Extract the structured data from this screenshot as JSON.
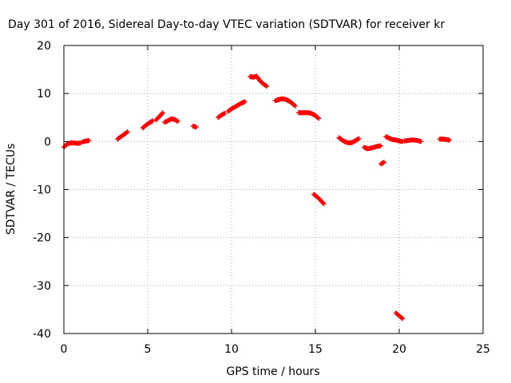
{
  "chart_data": {
    "type": "scatter",
    "title": "Day 301 of 2016, Sidereal Day-to-day VTEC variation (SDTVAR) for receiver kr",
    "xlabel": "GPS time / hours",
    "ylabel": "SDTVAR / TECUs",
    "xlim": [
      0,
      25
    ],
    "ylim": [
      -40,
      20
    ],
    "xticks": [
      0,
      5,
      10,
      15,
      20,
      25
    ],
    "yticks": [
      -40,
      -30,
      -20,
      -10,
      0,
      10,
      20
    ],
    "grid": true,
    "point_color": "#ff0000",
    "series": [
      {
        "segments": [
          {
            "x": [
              0.0,
              0.2,
              0.4,
              0.6,
              0.8,
              1.0
            ],
            "y": [
              -1.2,
              -0.5,
              -0.3,
              -0.3,
              -0.4,
              -0.3
            ]
          },
          {
            "x": [
              1.1,
              1.3,
              1.5
            ],
            "y": [
              -0.1,
              0.1,
              0.2
            ]
          },
          {
            "x": [
              3.2,
              3.4,
              3.6,
              3.8
            ],
            "y": [
              0.5,
              1.0,
              1.5,
              2.0
            ]
          },
          {
            "x": [
              4.7,
              4.9,
              5.1,
              5.3
            ],
            "y": [
              2.8,
              3.4,
              3.9,
              4.3
            ]
          },
          {
            "x": [
              5.5,
              5.7,
              5.9
            ],
            "y": [
              4.5,
              5.2,
              6.0
            ]
          },
          {
            "x": [
              6.0,
              6.2,
              6.4,
              6.6,
              6.8
            ],
            "y": [
              4.0,
              4.3,
              4.7,
              4.6,
              4.2
            ]
          },
          {
            "x": [
              7.7,
              7.9
            ],
            "y": [
              3.2,
              3.0
            ]
          },
          {
            "x": [
              9.2,
              9.4,
              9.6
            ],
            "y": [
              5.0,
              5.5,
              5.9
            ]
          },
          {
            "x": [
              9.8,
              10.0,
              10.2,
              10.4,
              10.6,
              10.8
            ],
            "y": [
              6.3,
              6.8,
              7.2,
              7.6,
              8.0,
              8.3
            ]
          },
          {
            "x": [
              11.1,
              11.3,
              11.5,
              11.7,
              11.9,
              12.1
            ],
            "y": [
              13.5,
              13.4,
              13.6,
              12.6,
              12.0,
              11.5
            ]
          },
          {
            "x": [
              12.6,
              12.8,
              13.0,
              13.2,
              13.4,
              13.6,
              13.8
            ],
            "y": [
              8.5,
              8.7,
              8.9,
              8.8,
              8.5,
              8.0,
              7.4
            ]
          },
          {
            "x": [
              14.0,
              14.2,
              14.4,
              14.6,
              14.8,
              15.0,
              15.2
            ],
            "y": [
              6.0,
              6.0,
              6.0,
              6.0,
              5.8,
              5.4,
              4.8
            ]
          },
          {
            "x": [
              14.9,
              15.1,
              15.3,
              15.5
            ],
            "y": [
              -11.0,
              -11.5,
              -12.2,
              -13.0
            ]
          },
          {
            "x": [
              16.4,
              16.6,
              16.8,
              17.0,
              17.2,
              17.4,
              17.6
            ],
            "y": [
              0.8,
              0.3,
              -0.1,
              -0.3,
              -0.2,
              0.2,
              0.6
            ]
          },
          {
            "x": [
              17.9,
              18.1,
              18.3,
              18.5,
              18.7,
              18.9
            ],
            "y": [
              -1.2,
              -1.5,
              -1.4,
              -1.2,
              -1.0,
              -0.9
            ]
          },
          {
            "x": [
              18.9,
              19.1
            ],
            "y": [
              -4.7,
              -4.3
            ]
          },
          {
            "x": [
              19.2,
              19.4,
              19.6,
              19.8,
              20.0,
              20.2
            ],
            "y": [
              1.0,
              0.7,
              0.4,
              0.3,
              0.1,
              0.0
            ]
          },
          {
            "x": [
              20.3,
              20.5,
              20.7,
              20.9,
              21.1,
              21.3
            ],
            "y": [
              0.1,
              0.2,
              0.3,
              0.3,
              0.2,
              0.0
            ]
          },
          {
            "x": [
              19.8,
              20.0,
              20.2
            ],
            "y": [
              -35.7,
              -36.3,
              -36.9
            ]
          },
          {
            "x": [
              22.4,
              22.6,
              22.8,
              23.0
            ],
            "y": [
              0.5,
              0.5,
              0.4,
              0.3
            ]
          }
        ]
      }
    ]
  }
}
